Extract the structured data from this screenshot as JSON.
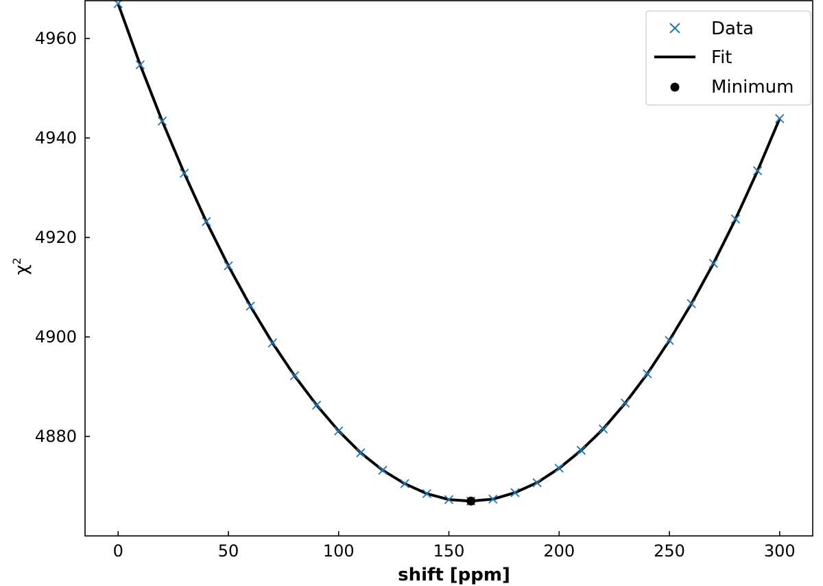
{
  "chart_data": {
    "type": "scatter",
    "xlabel": "shift [ppm]",
    "ylabel_base": "χ",
    "ylabel_sup": "2",
    "xlim": [
      -15,
      315
    ],
    "ylim": [
      4860,
      4967.6
    ],
    "xticks": [
      0,
      50,
      100,
      150,
      200,
      250,
      300
    ],
    "yticks": [
      4880,
      4900,
      4920,
      4940,
      4960
    ],
    "grid": false,
    "legend_position": "top-right",
    "legend": [
      {
        "label": "Data",
        "marker": "x",
        "color": "#1f77b4"
      },
      {
        "label": "Fit",
        "marker": "line",
        "color": "#000000"
      },
      {
        "label": "Minimum",
        "marker": "dot",
        "color": "#000000"
      }
    ],
    "series": [
      {
        "name": "Data",
        "color": "#1f77b4",
        "x": [
          0,
          10,
          20,
          30,
          40,
          50,
          60,
          70,
          80,
          90,
          100,
          110,
          120,
          130,
          140,
          150,
          160,
          170,
          180,
          190,
          200,
          210,
          220,
          230,
          240,
          250,
          260,
          270,
          280,
          290,
          300
        ],
        "y": [
          4967.0,
          4954.7,
          4943.4,
          4932.9,
          4923.2,
          4914.3,
          4906.2,
          4898.8,
          4892.2,
          4886.3,
          4881.1,
          4876.7,
          4873.2,
          4870.5,
          4868.5,
          4867.3,
          4867.0,
          4867.4,
          4868.7,
          4870.7,
          4873.6,
          4877.2,
          4881.5,
          4886.7,
          4892.6,
          4899.3,
          4906.7,
          4914.8,
          4923.7,
          4933.4,
          4943.9
        ]
      },
      {
        "name": "Fit",
        "color": "#000000",
        "x": [
          0,
          10,
          20,
          30,
          40,
          50,
          60,
          70,
          80,
          90,
          100,
          110,
          120,
          130,
          140,
          150,
          160,
          170,
          180,
          190,
          200,
          210,
          220,
          230,
          240,
          250,
          260,
          270,
          280,
          290,
          300
        ],
        "y": [
          4967.0,
          4954.7,
          4943.4,
          4932.9,
          4923.2,
          4914.3,
          4906.2,
          4898.8,
          4892.2,
          4886.3,
          4881.1,
          4876.7,
          4873.2,
          4870.5,
          4868.5,
          4867.3,
          4867.0,
          4867.4,
          4868.7,
          4870.7,
          4873.6,
          4877.2,
          4881.5,
          4886.7,
          4892.6,
          4899.3,
          4906.7,
          4914.8,
          4923.7,
          4933.4,
          4943.9
        ]
      },
      {
        "name": "Minimum",
        "color": "#000000",
        "x": [
          160
        ],
        "y": [
          4867.0
        ]
      }
    ]
  }
}
